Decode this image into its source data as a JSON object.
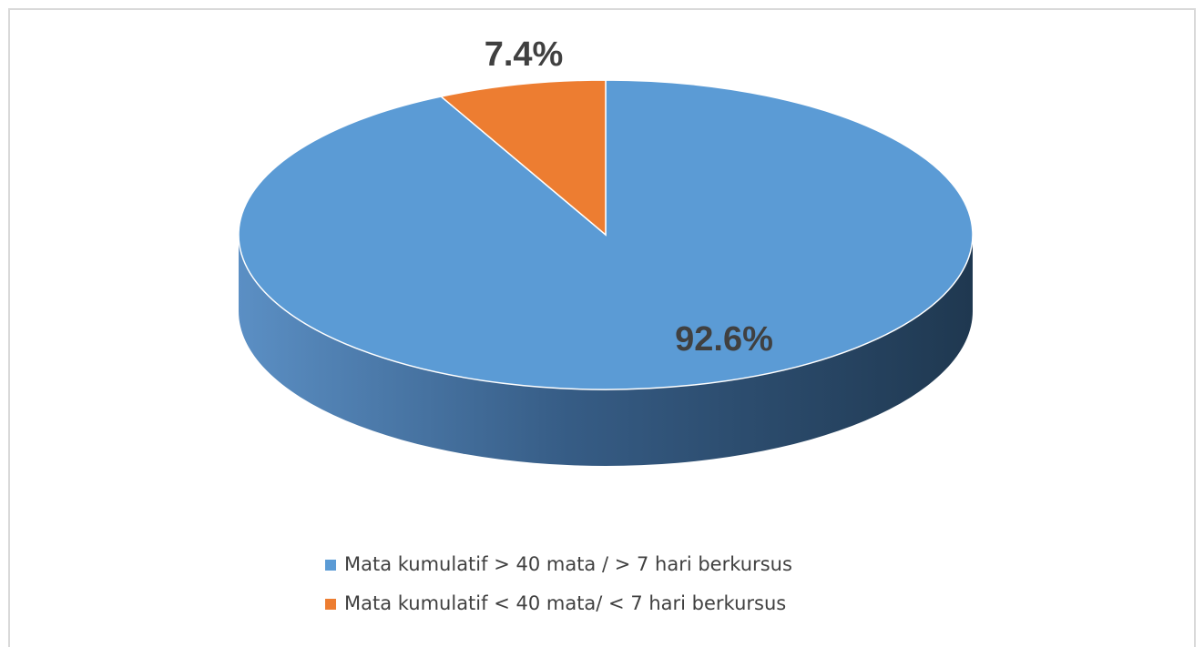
{
  "chart_data": {
    "type": "pie",
    "categories": [
      "Mata kumulatif > 40 mata / > 7 hari berkursus",
      "Mata kumulatif < 40 mata/ < 7 hari berkursus"
    ],
    "values": [
      92.6,
      7.4
    ],
    "value_labels": [
      "92.6%",
      "7.4%"
    ],
    "colors": [
      "#5b9bd5",
      "#ed7d31"
    ],
    "legend": "bottom"
  }
}
